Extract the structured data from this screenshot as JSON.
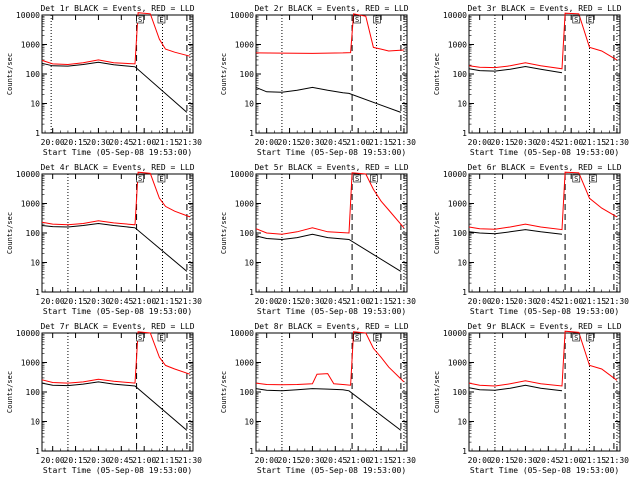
{
  "figure": {
    "xlabel": "Start Time (05-Sep-08 19:53:00)",
    "ylabel": "Counts/sec",
    "x_tick_labels": [
      "20:00",
      "20:15",
      "20:30",
      "20:45",
      "21:00",
      "21:15",
      "21:30"
    ],
    "y_tick_labels": [
      "1",
      "10",
      "100",
      "1000",
      "10000"
    ],
    "series_colors": {
      "black": "#000000",
      "red": "#ff0000"
    },
    "flag_labels": [
      "S",
      "E"
    ],
    "axes_color": "#000000",
    "background": "#ffffff"
  },
  "chart_data": [
    {
      "title": "Det 1r BLACK = Events, RED = LLD",
      "type": "line",
      "xlabel": "Start Time (05-Sep-08 19:53:00)",
      "ylabel": "Counts/sec",
      "y_scale": "log",
      "ylim": [
        1,
        10000
      ],
      "xlim": [
        "19:53",
        "21:32"
      ],
      "x_ticks": [
        "20:00",
        "20:15",
        "20:30",
        "20:45",
        "21:00",
        "21:15",
        "21:30"
      ],
      "dotted_vlines": [
        "19:59",
        "21:12",
        "21:30"
      ],
      "dashed_vlines": [
        "20:55",
        "21:28"
      ],
      "flags": [
        {
          "label": "S",
          "x": "20:57"
        },
        {
          "label": "E",
          "x": "21:11"
        }
      ],
      "series": [
        {
          "name": "BLACK = Events",
          "color": "#000000",
          "x": [
            "19:53",
            "20:00",
            "20:10",
            "20:20",
            "20:30",
            "20:40",
            "20:54",
            "21:28"
          ],
          "y": [
            230,
            190,
            185,
            210,
            250,
            205,
            175,
            5
          ]
        },
        {
          "name": "RED = LLD",
          "color": "#ff0000",
          "x": [
            "19:53",
            "20:00",
            "20:10",
            "20:20",
            "20:30",
            "20:40",
            "20:54",
            "20:56",
            "21:04",
            "21:10",
            "21:14",
            "21:20",
            "21:30"
          ],
          "y": [
            290,
            220,
            210,
            240,
            300,
            240,
            220,
            12000,
            11000,
            1500,
            700,
            550,
            400
          ]
        }
      ]
    },
    {
      "title": "Det 2r BLACK = Events, RED = LLD",
      "type": "line",
      "xlabel": "Start Time (05-Sep-08 19:53:00)",
      "ylabel": "Counts/sec",
      "y_scale": "log",
      "ylim": [
        1,
        10000
      ],
      "xlim": [
        "19:53",
        "21:32"
      ],
      "x_ticks": [
        "20:00",
        "20:15",
        "20:30",
        "20:45",
        "21:00",
        "21:15",
        "21:30"
      ],
      "dotted_vlines": [
        "20:10",
        "21:12",
        "21:30"
      ],
      "dashed_vlines": [
        "20:56",
        "21:28"
      ],
      "flags": [
        {
          "label": "S",
          "x": "20:59"
        },
        {
          "label": "E",
          "x": "21:12"
        }
      ],
      "series": [
        {
          "name": "BLACK = Events",
          "color": "#000000",
          "x": [
            "19:53",
            "20:00",
            "20:10",
            "20:20",
            "20:30",
            "20:40",
            "20:50",
            "20:54",
            "21:28"
          ],
          "y": [
            35,
            25,
            24,
            28,
            35,
            28,
            23,
            22,
            5
          ]
        },
        {
          "name": "RED = LLD",
          "color": "#ff0000",
          "x": [
            "19:53",
            "20:10",
            "20:30",
            "20:50",
            "20:55",
            "20:57",
            "21:05",
            "21:10",
            "21:15",
            "21:20",
            "21:30"
          ],
          "y": [
            520,
            510,
            500,
            520,
            530,
            11000,
            9000,
            800,
            700,
            600,
            650
          ]
        }
      ]
    },
    {
      "title": "Det 3r BLACK = Events, RED = LLD",
      "type": "line",
      "xlabel": "Start Time (05-Sep-08 19:53:00)",
      "ylabel": "Counts/sec",
      "y_scale": "log",
      "ylim": [
        1,
        10000
      ],
      "xlim": [
        "19:53",
        "21:32"
      ],
      "x_ticks": [
        "20:00",
        "20:15",
        "20:30",
        "20:45",
        "21:00",
        "21:15",
        "21:30"
      ],
      "dotted_vlines": [
        "20:10",
        "21:12",
        "21:30"
      ],
      "dashed_vlines": [
        "20:56",
        "21:28"
      ],
      "flags": [
        {
          "label": "S",
          "x": "21:03"
        },
        {
          "label": "E",
          "x": "21:12"
        }
      ],
      "series": [
        {
          "name": "BLACK = Events",
          "color": "#000000",
          "x": [
            "19:53",
            "20:00",
            "20:10",
            "20:20",
            "20:30",
            "20:40",
            "20:54"
          ],
          "y": [
            150,
            130,
            125,
            145,
            180,
            145,
            110
          ]
        },
        {
          "name": "RED = LLD",
          "color": "#ff0000",
          "x": [
            "19:53",
            "20:00",
            "20:10",
            "20:20",
            "20:30",
            "20:40",
            "20:54",
            "20:56",
            "21:05",
            "21:12",
            "21:20",
            "21:30"
          ],
          "y": [
            190,
            170,
            165,
            190,
            240,
            190,
            150,
            11500,
            11000,
            800,
            600,
            300
          ]
        }
      ]
    },
    {
      "title": "Det 4r BLACK = Events, RED = LLD",
      "type": "line",
      "xlabel": "Start Time (05-Sep-08 19:53:00)",
      "ylabel": "Counts/sec",
      "y_scale": "log",
      "ylim": [
        1,
        10000
      ],
      "xlim": [
        "19:53",
        "21:32"
      ],
      "x_ticks": [
        "20:00",
        "20:15",
        "20:30",
        "20:45",
        "21:00",
        "21:15",
        "21:30"
      ],
      "dotted_vlines": [
        "20:10",
        "21:12",
        "21:30"
      ],
      "dashed_vlines": [
        "20:55",
        "21:28"
      ],
      "flags": [
        {
          "label": "S",
          "x": "20:57"
        },
        {
          "label": "E",
          "x": "21:11"
        }
      ],
      "series": [
        {
          "name": "BLACK = Events",
          "color": "#000000",
          "x": [
            "19:53",
            "20:00",
            "20:10",
            "20:20",
            "20:30",
            "20:40",
            "20:54",
            "21:28"
          ],
          "y": [
            180,
            165,
            160,
            180,
            210,
            180,
            150,
            5
          ]
        },
        {
          "name": "RED = LLD",
          "color": "#ff0000",
          "x": [
            "19:53",
            "20:00",
            "20:10",
            "20:20",
            "20:30",
            "20:40",
            "20:54",
            "20:56",
            "21:04",
            "21:10",
            "21:14",
            "21:20",
            "21:30"
          ],
          "y": [
            230,
            200,
            190,
            210,
            260,
            220,
            190,
            11500,
            10500,
            1500,
            800,
            550,
            350
          ]
        }
      ]
    },
    {
      "title": "Det 5r BLACK = Events, RED = LLD",
      "type": "line",
      "xlabel": "Start Time (05-Sep-08 19:53:00)",
      "ylabel": "Counts/sec",
      "y_scale": "log",
      "ylim": [
        1,
        10000
      ],
      "xlim": [
        "19:53",
        "21:32"
      ],
      "x_ticks": [
        "20:00",
        "20:15",
        "20:30",
        "20:45",
        "21:00",
        "21:15",
        "21:30"
      ],
      "dotted_vlines": [
        "20:10",
        "21:12",
        "21:30"
      ],
      "dashed_vlines": [
        "20:56",
        "21:28"
      ],
      "flags": [
        {
          "label": "S",
          "x": "20:59"
        },
        {
          "label": "E",
          "x": "21:10"
        }
      ],
      "series": [
        {
          "name": "BLACK = Events",
          "color": "#000000",
          "x": [
            "19:53",
            "20:00",
            "20:10",
            "20:20",
            "20:30",
            "20:40",
            "20:54",
            "21:28"
          ],
          "y": [
            80,
            65,
            60,
            70,
            90,
            70,
            60,
            5
          ]
        },
        {
          "name": "RED = LLD",
          "color": "#ff0000",
          "x": [
            "19:53",
            "20:00",
            "20:10",
            "20:20",
            "20:30",
            "20:40",
            "20:54",
            "20:56",
            "21:05",
            "21:10",
            "21:15",
            "21:20",
            "21:30"
          ],
          "y": [
            140,
            100,
            90,
            110,
            150,
            110,
            100,
            11000,
            10000,
            3000,
            1200,
            600,
            150
          ]
        }
      ]
    },
    {
      "title": "Det 6r BLACK = Events, RED = LLD",
      "type": "line",
      "xlabel": "Start Time (05-Sep-08 19:53:00)",
      "ylabel": "Counts/sec",
      "y_scale": "log",
      "ylim": [
        1,
        10000
      ],
      "xlim": [
        "19:53",
        "21:32"
      ],
      "x_ticks": [
        "20:00",
        "20:15",
        "20:30",
        "20:45",
        "21:00",
        "21:15",
        "21:30"
      ],
      "dotted_vlines": [
        "20:10",
        "21:12",
        "21:30"
      ],
      "dashed_vlines": [
        "20:56",
        "21:28"
      ],
      "flags": [
        {
          "label": "S",
          "x": "21:03"
        },
        {
          "label": "E",
          "x": "21:14"
        }
      ],
      "series": [
        {
          "name": "BLACK = Events",
          "color": "#000000",
          "x": [
            "19:53",
            "20:00",
            "20:10",
            "20:20",
            "20:30",
            "20:40",
            "20:54"
          ],
          "y": [
            110,
            100,
            95,
            110,
            130,
            110,
            90
          ]
        },
        {
          "name": "RED = LLD",
          "color": "#ff0000",
          "x": [
            "19:53",
            "20:00",
            "20:10",
            "20:20",
            "20:30",
            "20:40",
            "20:54",
            "20:56",
            "21:05",
            "21:12",
            "21:20",
            "21:30"
          ],
          "y": [
            160,
            140,
            135,
            160,
            200,
            160,
            130,
            11500,
            11000,
            1500,
            700,
            350
          ]
        }
      ]
    },
    {
      "title": "Det 7r BLACK = Events, RED = LLD",
      "type": "line",
      "xlabel": "Start Time (05-Sep-08 19:53:00)",
      "ylabel": "Counts/sec",
      "y_scale": "log",
      "ylim": [
        1,
        10000
      ],
      "xlim": [
        "19:53",
        "21:32"
      ],
      "x_ticks": [
        "20:00",
        "20:15",
        "20:30",
        "20:45",
        "21:00",
        "21:15",
        "21:30"
      ],
      "dotted_vlines": [
        "20:10",
        "21:12",
        "21:30"
      ],
      "dashed_vlines": [
        "20:55",
        "21:28"
      ],
      "flags": [
        {
          "label": "S",
          "x": "20:57"
        },
        {
          "label": "E",
          "x": "21:11"
        }
      ],
      "series": [
        {
          "name": "BLACK = Events",
          "color": "#000000",
          "x": [
            "19:53",
            "20:00",
            "20:10",
            "20:20",
            "20:30",
            "20:40",
            "20:54",
            "21:28"
          ],
          "y": [
            200,
            170,
            165,
            185,
            220,
            185,
            160,
            5
          ]
        },
        {
          "name": "RED = LLD",
          "color": "#ff0000",
          "x": [
            "19:53",
            "20:00",
            "20:10",
            "20:20",
            "20:30",
            "20:40",
            "20:54",
            "20:56",
            "21:04",
            "21:10",
            "21:14",
            "21:20",
            "21:30"
          ],
          "y": [
            260,
            210,
            200,
            220,
            270,
            230,
            200,
            11000,
            10000,
            1500,
            800,
            600,
            400
          ]
        }
      ]
    },
    {
      "title": "Det 8r BLACK = Events, RED = LLD",
      "type": "line",
      "xlabel": "Start Time (05-Sep-08 19:53:00)",
      "ylabel": "Counts/sec",
      "y_scale": "log",
      "ylim": [
        1,
        10000
      ],
      "xlim": [
        "19:53",
        "21:32"
      ],
      "x_ticks": [
        "20:00",
        "20:15",
        "20:30",
        "20:45",
        "21:00",
        "21:15",
        "21:30"
      ],
      "dotted_vlines": [
        "20:10",
        "21:12",
        "21:30"
      ],
      "dashed_vlines": [
        "20:56",
        "21:28"
      ],
      "flags": [
        {
          "label": "S",
          "x": "20:59"
        },
        {
          "label": "E",
          "x": "21:12"
        }
      ],
      "series": [
        {
          "name": "BLACK = Events",
          "color": "#000000",
          "x": [
            "19:53",
            "20:00",
            "20:10",
            "20:20",
            "20:30",
            "20:40",
            "20:50",
            "20:54",
            "21:28"
          ],
          "y": [
            130,
            115,
            110,
            120,
            130,
            125,
            120,
            110,
            5
          ]
        },
        {
          "name": "RED = LLD",
          "color": "#ff0000",
          "x": [
            "19:53",
            "20:00",
            "20:10",
            "20:20",
            "20:30",
            "20:33",
            "20:40",
            "20:44",
            "20:50",
            "20:55",
            "20:57",
            "21:05",
            "21:10",
            "21:15",
            "21:20",
            "21:30"
          ],
          "y": [
            200,
            180,
            175,
            180,
            190,
            400,
            420,
            190,
            180,
            170,
            11000,
            10000,
            3000,
            1500,
            700,
            220
          ]
        }
      ]
    },
    {
      "title": "Det 9r BLACK = Events, RED = LLD",
      "type": "line",
      "xlabel": "Start Time (05-Sep-08 19:53:00)",
      "ylabel": "Counts/sec",
      "y_scale": "log",
      "ylim": [
        1,
        10000
      ],
      "xlim": [
        "19:53",
        "21:32"
      ],
      "x_ticks": [
        "20:00",
        "20:15",
        "20:30",
        "20:45",
        "21:00",
        "21:15",
        "21:30"
      ],
      "dotted_vlines": [
        "20:10",
        "21:12",
        "21:30"
      ],
      "dashed_vlines": [
        "20:56",
        "21:28"
      ],
      "flags": [
        {
          "label": "S",
          "x": "21:03"
        },
        {
          "label": "E",
          "x": "21:12"
        }
      ],
      "series": [
        {
          "name": "BLACK = Events",
          "color": "#000000",
          "x": [
            "19:53",
            "20:00",
            "20:10",
            "20:20",
            "20:30",
            "20:40",
            "20:54"
          ],
          "y": [
            140,
            120,
            115,
            135,
            170,
            135,
            110
          ]
        },
        {
          "name": "RED = LLD",
          "color": "#ff0000",
          "x": [
            "19:53",
            "20:00",
            "20:10",
            "20:20",
            "20:30",
            "20:40",
            "20:54",
            "20:56",
            "21:05",
            "21:12",
            "21:20",
            "21:30"
          ],
          "y": [
            200,
            170,
            160,
            190,
            240,
            190,
            160,
            11500,
            10500,
            800,
            600,
            250
          ]
        }
      ]
    }
  ]
}
